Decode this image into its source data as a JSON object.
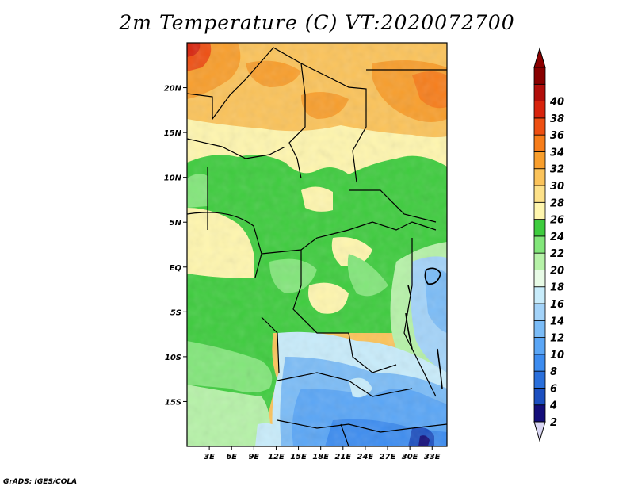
{
  "title": "2m Temperature (C) VT:2020072700",
  "footer": "GrADS: IGES/COLA",
  "map": {
    "lon_range": [
      0,
      35
    ],
    "lat_range": [
      -20,
      25
    ],
    "lat_ticks": [
      {
        "value": 20,
        "label": "20N"
      },
      {
        "value": 15,
        "label": "15N"
      },
      {
        "value": 10,
        "label": "10N"
      },
      {
        "value": 5,
        "label": "5N"
      },
      {
        "value": 0,
        "label": "EQ"
      },
      {
        "value": -5,
        "label": "5S"
      },
      {
        "value": -10,
        "label": "10S"
      },
      {
        "value": -15,
        "label": "15S"
      }
    ],
    "lon_ticks": [
      {
        "value": 3,
        "label": "3E"
      },
      {
        "value": 6,
        "label": "6E"
      },
      {
        "value": 9,
        "label": "9E"
      },
      {
        "value": 12,
        "label": "12E"
      },
      {
        "value": 15,
        "label": "15E"
      },
      {
        "value": 18,
        "label": "18E"
      },
      {
        "value": 21,
        "label": "21E"
      },
      {
        "value": 24,
        "label": "24E"
      },
      {
        "value": 27,
        "label": "27E"
      },
      {
        "value": 30,
        "label": "30E"
      },
      {
        "value": 33,
        "label": "33E"
      }
    ]
  },
  "colorbar": {
    "levels": [
      "2",
      "4",
      "6",
      "8",
      "10",
      "12",
      "14",
      "16",
      "18",
      "20",
      "22",
      "24",
      "26",
      "28",
      "30",
      "32",
      "34",
      "36",
      "38",
      "40"
    ],
    "colors": [
      "#140e7a",
      "#1c4fc0",
      "#2a6fdb",
      "#3c8cf0",
      "#5aa6f6",
      "#7bbcf7",
      "#a3d3f9",
      "#c8ecfb",
      "#e8fbe6",
      "#b6f2a8",
      "#82e67a",
      "#3ecc3e",
      "#fff6ae",
      "#fde189",
      "#fbc35a",
      "#f89e2c",
      "#f77d1a",
      "#ee4f12",
      "#d8230c",
      "#b10e0a",
      "#880000"
    ],
    "under_color": "#d9d6f3",
    "over_color": "#8b0000"
  }
}
